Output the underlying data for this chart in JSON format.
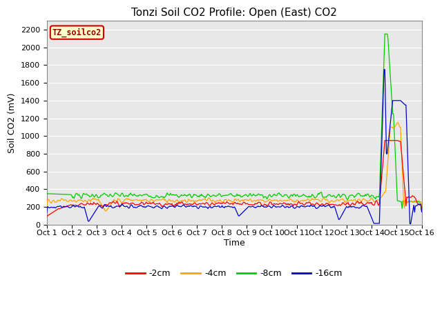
{
  "title": "Tonzi Soil CO2 Profile: Open (East) CO2",
  "ylabel": "Soil CO2 (mV)",
  "xlabel": "Time",
  "ylim": [
    0,
    2300
  ],
  "yticks": [
    0,
    200,
    400,
    600,
    800,
    1000,
    1200,
    1400,
    1600,
    1800,
    2000,
    2200
  ],
  "xtick_labels": [
    "Oct 1",
    "Oct 2",
    "Oct 3",
    "Oct 4",
    "Oct 5",
    "Oct 6",
    "Oct 7",
    "Oct 8",
    "Oct 9",
    "Oct 10",
    "Oct 11",
    "Oct 12",
    "Oct 13",
    "Oct 14",
    "Oct 15",
    "Oct 16"
  ],
  "num_points": 480,
  "legend_label": "TZ_soilco2",
  "legend_bg": "#ffffcc",
  "legend_border": "#cc0000",
  "line_colors": {
    "2cm": "#ff0000",
    "4cm": "#ffa500",
    "8cm": "#00cc00",
    "16cm": "#0000cc"
  },
  "line_labels": [
    "-2cm",
    "-4cm",
    "-8cm",
    "-16cm"
  ],
  "bg_color": "#e8e8e8",
  "fig_bg": "#ffffff",
  "title_fontsize": 11,
  "axis_fontsize": 9,
  "tick_fontsize": 8
}
